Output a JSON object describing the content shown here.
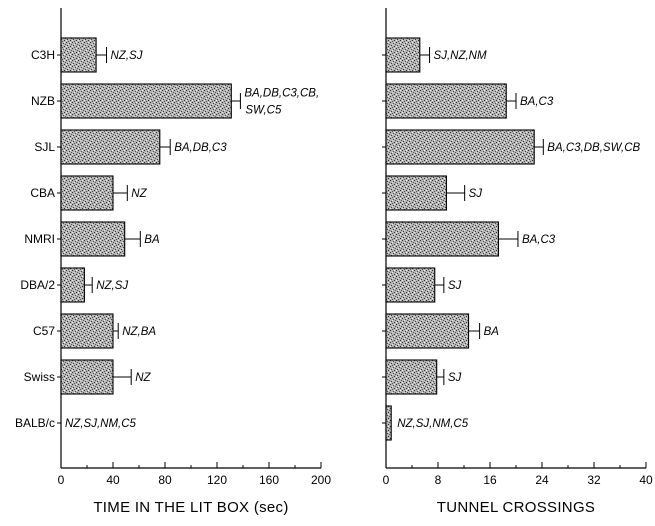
{
  "chart_data": [
    {
      "type": "bar",
      "orientation": "horizontal",
      "categories": [
        "C3H",
        "NZB",
        "SJL",
        "CBA",
        "NMRI",
        "DBA/2",
        "C57",
        "Swiss",
        "BALB/c"
      ],
      "values": [
        27,
        131,
        76,
        40,
        49,
        18,
        40,
        40,
        0
      ],
      "errors": [
        8,
        7,
        8,
        11,
        12,
        6,
        4,
        14,
        0
      ],
      "annotations": [
        [
          "NZ,SJ"
        ],
        [
          "BA,DB,C3,CB,",
          "SW,C5"
        ],
        [
          "BA,DB,C3"
        ],
        [
          "NZ"
        ],
        [
          "BA"
        ],
        [
          "NZ,SJ"
        ],
        [
          "NZ,BA"
        ],
        [
          "NZ"
        ],
        [
          "NZ,SJ,NM,C5"
        ]
      ],
      "xlabel": "TIME IN THE LIT BOX (sec)",
      "xlim": [
        0,
        200
      ],
      "xticks": [
        "0",
        "40",
        "80",
        "120",
        "160",
        "200"
      ],
      "fill": "#9a9a9a"
    },
    {
      "type": "bar",
      "orientation": "horizontal",
      "categories": [
        "C3H",
        "NZB",
        "SJL",
        "CBA",
        "NMRI",
        "DBA/2",
        "C57",
        "Swiss",
        "BALB/c"
      ],
      "values": [
        5.2,
        18.5,
        22.8,
        9.3,
        17.3,
        7.5,
        12.7,
        7.8,
        0.8
      ],
      "errors": [
        1.5,
        1.5,
        1.4,
        2.8,
        3.0,
        1.4,
        1.7,
        1.1,
        0
      ],
      "annotations": [
        [
          "SJ,NZ,NM"
        ],
        [
          "BA,C3"
        ],
        [
          "BA,C3,DB,SW,CB"
        ],
        [
          "SJ"
        ],
        [
          "BA,C3"
        ],
        [
          "SJ"
        ],
        [
          "BA"
        ],
        [
          "SJ"
        ],
        [
          "NZ,SJ,NM,C5"
        ]
      ],
      "xlabel": "TUNNEL CROSSINGS",
      "xlim": [
        0,
        40
      ],
      "xticks": [
        "0",
        "8",
        "16",
        "24",
        "32",
        "40"
      ],
      "fill": "#9a9a9a"
    }
  ]
}
